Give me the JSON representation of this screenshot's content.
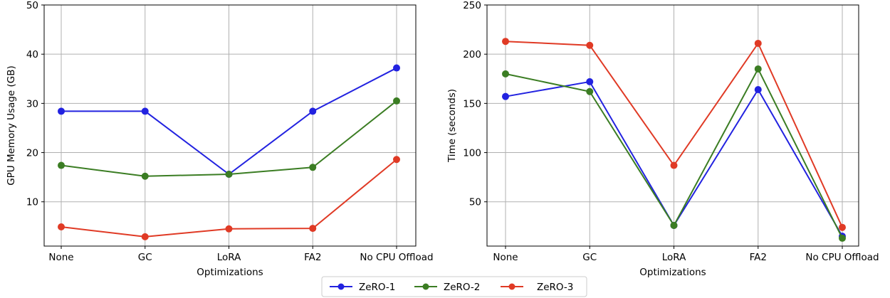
{
  "chart_data": [
    {
      "type": "line",
      "title": "",
      "xlabel": "Optimizations",
      "ylabel": "GPU Memory Usage (GB)",
      "categories": [
        "None",
        "GC",
        "LoRA",
        "FA2",
        "No CPU Offload"
      ],
      "ylim": [
        1,
        50
      ],
      "yticks": [
        10,
        20,
        30,
        40,
        50
      ],
      "grid": true,
      "series": [
        {
          "name": "ZeRO-1",
          "color": "#2222e0",
          "values": [
            28.4,
            28.4,
            15.6,
            28.4,
            37.2
          ]
        },
        {
          "name": "ZeRO-2",
          "color": "#3b7d23",
          "values": [
            17.4,
            15.2,
            15.6,
            17.0,
            30.5
          ]
        },
        {
          "name": "ZeRO-3",
          "color": "#e03a25",
          "values": [
            4.9,
            2.9,
            4.5,
            4.6,
            18.6
          ]
        }
      ]
    },
    {
      "type": "line",
      "title": "",
      "xlabel": "Optimizations",
      "ylabel": "Time (seconds)",
      "categories": [
        "None",
        "GC",
        "LoRA",
        "FA2",
        "No CPU Offload"
      ],
      "ylim": [
        5,
        250
      ],
      "yticks": [
        50,
        100,
        150,
        200,
        250
      ],
      "grid": true,
      "series": [
        {
          "name": "ZeRO-1",
          "color": "#2222e0",
          "values": [
            157,
            172,
            26,
            164,
            15
          ]
        },
        {
          "name": "ZeRO-2",
          "color": "#3b7d23",
          "values": [
            180,
            162,
            26,
            185,
            13
          ]
        },
        {
          "name": "ZeRO-3",
          "color": "#e03a25",
          "values": [
            213,
            209,
            87,
            211,
            24
          ]
        }
      ]
    }
  ],
  "legend": {
    "placement": "bottom-center",
    "entries": [
      {
        "label": "ZeRO-1",
        "color": "#2222e0"
      },
      {
        "label": "ZeRO-2",
        "color": "#3b7d23"
      },
      {
        "label": "ZeRO-3",
        "color": "#e03a25"
      }
    ]
  }
}
